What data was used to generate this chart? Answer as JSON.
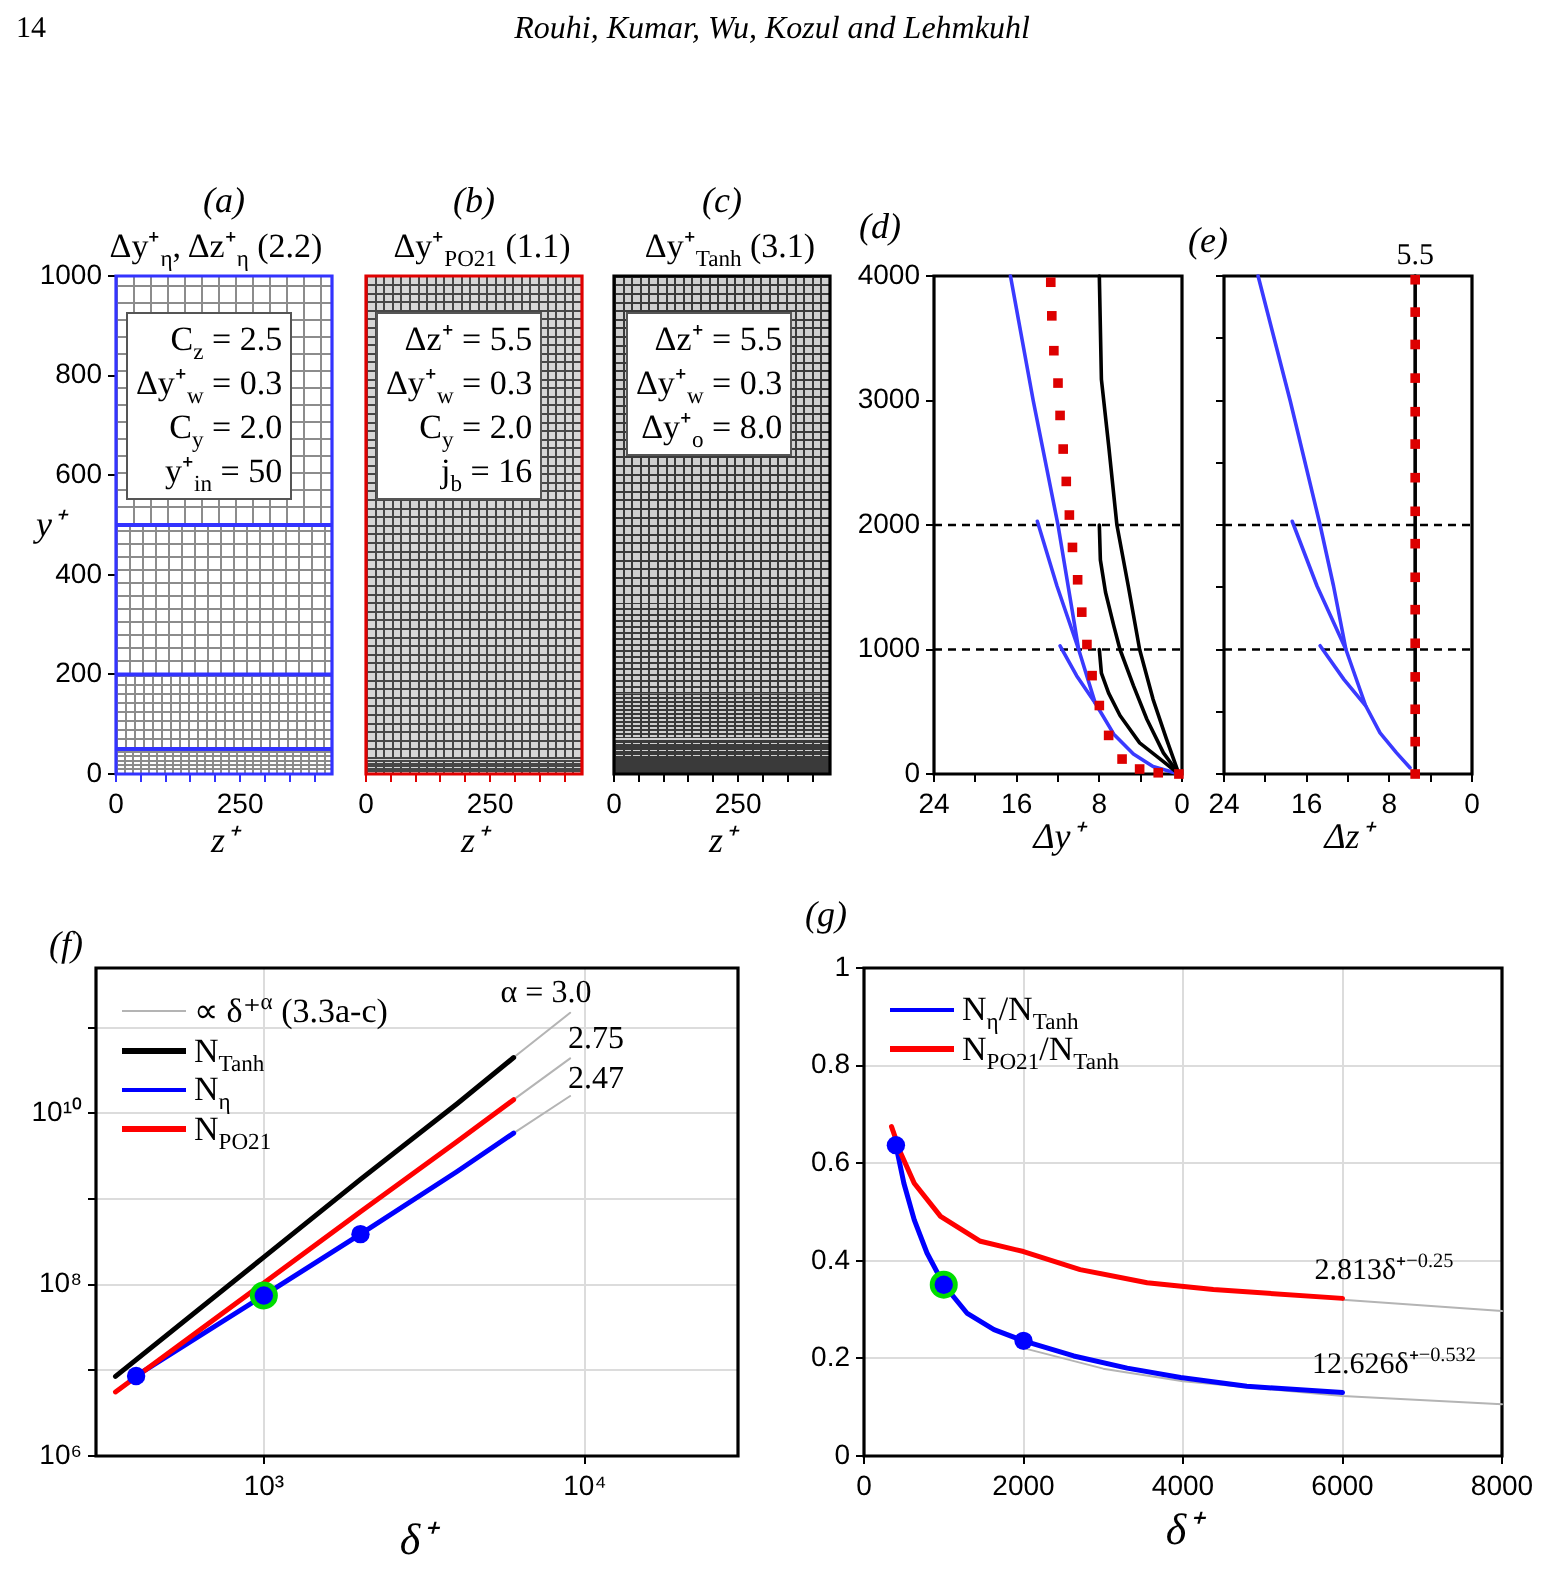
{
  "chart_data": [
    {
      "type": "other",
      "annotations": [
        "14",
        "Rouhi, Kumar, Wu, Kozul and Lehmkuhl"
      ]
    },
    {
      "type": "line",
      "title": "(a)",
      "subtitle": "Δy⁺$_{η}$, Δz⁺$_{η}$ (2.2)",
      "xlabel": "z⁺",
      "ylabel": "y⁺",
      "color": "#3333ff",
      "xlim": [
        0,
        435
      ],
      "ylim": [
        0,
        1000
      ],
      "xticks": [
        0,
        {
          "value": 50,
          "label": null
        },
        {
          "value": 100,
          "label": null
        },
        {
          "value": 150,
          "label": null
        },
        {
          "value": 200,
          "label": null
        },
        250,
        {
          "value": 300,
          "label": null
        },
        {
          "value": 350,
          "label": null
        },
        {
          "value": 400,
          "label": null
        }
      ],
      "yticks": [
        0,
        200,
        400,
        600,
        800,
        1000
      ],
      "ref_lines": [
        {
          "axis": "y",
          "value": 50,
          "color": "#3333ff"
        },
        {
          "axis": "y",
          "value": 200,
          "color": "#3333ff"
        },
        {
          "axis": "y",
          "value": 500,
          "color": "#3333ff"
        }
      ],
      "annotations": [
        "C$_{z}$ = 2.5",
        "Δy⁺$_{w}$ = 0.3",
        "C$_{y}$ = 2.0",
        "y⁺$_{in}$ = 50"
      ]
    },
    {
      "type": "line",
      "title": "(b)",
      "subtitle": "Δy⁺$_{PO21}$ (1.1)",
      "xlabel": "z⁺",
      "color": "#e00000",
      "xlim": [
        0,
        435
      ],
      "ylim": [
        0,
        1000
      ],
      "xticks": [
        0,
        {
          "value": 50,
          "label": null
        },
        {
          "value": 100,
          "label": null
        },
        {
          "value": 150,
          "label": null
        },
        {
          "value": 200,
          "label": null
        },
        250,
        {
          "value": 300,
          "label": null
        },
        {
          "value": 350,
          "label": null
        },
        {
          "value": 400,
          "label": null
        }
      ],
      "tick_labels": "x",
      "annotations": [
        "Δz⁺ = 5.5",
        "Δy⁺$_{w}$ = 0.3",
        "C$_{y}$ = 2.0",
        "j$_{b}$ = 16"
      ]
    },
    {
      "type": "line",
      "title": "(c)",
      "subtitle": "Δy⁺$_{Tanh}$ (3.1)",
      "xlabel": "z⁺",
      "color": "#000000",
      "xlim": [
        0,
        435
      ],
      "ylim": [
        0,
        1000
      ],
      "xticks": [
        0,
        {
          "value": 50,
          "label": null
        },
        {
          "value": 100,
          "label": null
        },
        {
          "value": 150,
          "label": null
        },
        {
          "value": 200,
          "label": null
        },
        250,
        {
          "value": 300,
          "label": null
        },
        {
          "value": 350,
          "label": null
        },
        {
          "value": 400,
          "label": null
        }
      ],
      "tick_labels": "x",
      "annotations": [
        "Δz⁺ = 5.5",
        "Δy⁺$_{w}$ = 0.3",
        "Δy⁺$_{o}$ = 8.0"
      ]
    },
    {
      "type": "line",
      "title": "(d)",
      "xlabel": "Δy⁺",
      "xlim": [
        24,
        0
      ],
      "ylim": [
        0,
        4000
      ],
      "xticks": [
        24,
        {
          "value": 20,
          "label": null
        },
        16,
        {
          "value": 12,
          "label": null
        },
        8,
        {
          "value": 4,
          "label": null
        },
        0
      ],
      "yticks": [
        0,
        1000,
        2000,
        3000,
        4000
      ],
      "ref_lines": [
        {
          "axis": "y",
          "value": 1000,
          "color": "#000000",
          "line_style": "dashed"
        },
        {
          "axis": "y",
          "value": 2000,
          "color": "#000000",
          "line_style": "dashed"
        }
      ],
      "series": [
        {
          "color": "#3a3aff",
          "x": [
            16.6,
            14.4,
            12.0,
            10.0,
            8.4,
            6.6,
            4.7,
            2.8,
            0.3
          ],
          "values": [
            4000,
            3000,
            2000,
            1000,
            570,
            320,
            160,
            60,
            0
          ]
        },
        {
          "color": "#3a3aff",
          "x": [
            14.0,
            12.1,
            10.0
          ],
          "values": [
            2030,
            1510,
            1000
          ]
        },
        {
          "color": "#3a3aff",
          "x": [
            11.8,
            10.2,
            8.4
          ],
          "values": [
            1030,
            790,
            570
          ]
        },
        {
          "color": "#000000",
          "x": [
            8.0,
            7.8,
            7.1,
            6.3,
            5.2,
            4.1,
            2.8,
            1.5,
            0.3
          ],
          "values": [
            4000,
            3170,
            2640,
            2000,
            1510,
            1000,
            600,
            280,
            0
          ]
        },
        {
          "color": "#000000",
          "x": [
            8.0,
            7.9,
            7.4,
            6.6,
            6.0,
            4.7,
            3.4,
            1.8,
            0.3
          ],
          "values": [
            2000,
            1720,
            1460,
            1190,
            1000,
            710,
            440,
            170,
            0
          ]
        },
        {
          "color": "#000000",
          "x": [
            8.0,
            7.8,
            7.1,
            6.0,
            4.1,
            2.1,
            0.3
          ],
          "values": [
            1000,
            810,
            650,
            470,
            250,
            120,
            0
          ]
        },
        {
          "type": "scatter",
          "marker": "square",
          "color": "#dd0000",
          "x": [
            12.7,
            12.6,
            12.4,
            12.0,
            11.8,
            11.5,
            11.2,
            10.9,
            10.6,
            10.1,
            9.7,
            9.2,
            8.7,
            8.0,
            7.1,
            5.8,
            4.1,
            2.3,
            0.3
          ],
          "values": [
            3950,
            3680,
            3400,
            3140,
            2880,
            2610,
            2350,
            2080,
            1820,
            1560,
            1300,
            1040,
            790,
            550,
            310,
            120,
            40,
            10,
            0
          ]
        }
      ]
    },
    {
      "type": "line",
      "title": "(e)",
      "xlabel": "Δz⁺",
      "xlim": [
        24,
        0
      ],
      "ylim": [
        0,
        4000
      ],
      "xticks": [
        24,
        {
          "value": 20,
          "label": null
        },
        16,
        {
          "value": 12,
          "label": null
        },
        8,
        {
          "value": 4,
          "label": null
        },
        0
      ],
      "yticks": [
        0,
        500,
        1000,
        1500,
        2000,
        2500,
        3000,
        3500,
        4000
      ],
      "tick_labels": "x",
      "ref_lines": [
        {
          "axis": "y",
          "value": 1000,
          "color": "#000000",
          "line_style": "dashed"
        },
        {
          "axis": "y",
          "value": 2000,
          "color": "#000000",
          "line_style": "dashed"
        }
      ],
      "annotations": [
        {
          "text": "5.5",
          "x": 5.5,
          "y": 4000
        }
      ],
      "series": [
        {
          "color": "#3a3aff",
          "x": [
            20.7,
            17.6,
            14.7,
            13.4,
            12.2,
            10.3,
            8.9,
            7.3,
            6.0
          ],
          "values": [
            4000,
            3000,
            2000,
            1510,
            1000,
            550,
            330,
            170,
            50
          ]
        },
        {
          "color": "#3a3aff",
          "x": [
            17.4,
            15.0,
            12.2
          ],
          "values": [
            2030,
            1510,
            1000
          ]
        },
        {
          "color": "#3a3aff",
          "x": [
            14.7,
            12.4,
            10.3
          ],
          "values": [
            1030,
            760,
            550
          ]
        },
        {
          "color": "#000000",
          "x": [
            5.5,
            5.5
          ],
          "values": [
            0,
            4000
          ]
        },
        {
          "type": "scatter",
          "marker": "square",
          "color": "#dd0000",
          "x": [
            5.5,
            5.5,
            5.5,
            5.5,
            5.5,
            5.5,
            5.5,
            5.5,
            5.5,
            5.5,
            5.5,
            5.5,
            5.5,
            5.5,
            5.5,
            5.5
          ],
          "values": [
            0,
            260,
            520,
            780,
            1050,
            1320,
            1580,
            1850,
            2110,
            2380,
            2650,
            2910,
            3180,
            3450,
            3710,
            3970
          ]
        }
      ]
    },
    {
      "type": "line",
      "title": "(f)",
      "xlabel": "δ⁺",
      "log": "xy",
      "xlim": [
        300,
        30000
      ],
      "ylim": [
        1000000,
        500000000000
      ],
      "xticks": [
        {
          "value": 1000,
          "label": "10³"
        },
        {
          "value": 10000,
          "label": "10⁴"
        }
      ],
      "yticks": [
        {
          "value": 1000000,
          "label": "10⁶"
        },
        {
          "value": 10000000,
          "label": null
        },
        {
          "value": 100000000,
          "label": "10⁸"
        },
        {
          "value": 1000000000,
          "label": null
        },
        {
          "value": 10000000000,
          "label": "10¹⁰"
        },
        {
          "value": 100000000000,
          "label": null
        }
      ],
      "grid": true,
      "legend": "top left",
      "annotations": [
        "α = 3.0",
        "2.75",
        "2.47"
      ],
      "series": [
        {
          "name": "∝ δ⁺$^{α}$ (3.3a-c)",
          "color": "#b4b4b4",
          "x": [
            6000,
            9000
          ],
          "values": [
            45000000000,
            150000000000
          ]
        },
        {
          "color": "#b4b4b4",
          "x": [
            6000,
            9000
          ],
          "values": [
            14500000000,
            44000000000
          ]
        },
        {
          "color": "#b4b4b4",
          "x": [
            6000,
            9000
          ],
          "values": [
            5900000000,
            16000000000
          ]
        },
        {
          "name": "N$_{Tanh}$",
          "color": "#000000",
          "x": [
            345,
            1000,
            2000,
            4000,
            6000
          ],
          "values": [
            8500000,
            210000000,
            1700000000,
            13000000000,
            45000000000
          ]
        },
        {
          "name": "N$_{η}$",
          "color": "#0000ff",
          "x": [
            400,
            1000,
            2000,
            4000,
            6000
          ],
          "values": [
            8600000,
            75000000,
            390000000,
            2100000000,
            5900000000
          ]
        },
        {
          "name": "N$_{PO21}$",
          "color": "#ff0000",
          "x": [
            345,
            1000,
            2000,
            4000,
            6000
          ],
          "values": [
            5600000,
            105000000,
            710000000,
            4700000000,
            14500000000
          ]
        },
        {
          "type": "scatter",
          "marker": "circle",
          "color": "#00dd00",
          "x": [
            1000
          ],
          "values": [
            75000000
          ]
        },
        {
          "type": "scatter",
          "marker": "circle",
          "color": "#0000ff",
          "x": [
            400,
            1000,
            2000
          ],
          "values": [
            8600000,
            75000000,
            390000000
          ]
        }
      ]
    },
    {
      "type": "line",
      "title": "(g)",
      "xlabel": "δ⁺",
      "xlim": [
        0,
        8000
      ],
      "ylim": [
        0,
        1
      ],
      "xticks": [
        0,
        2000,
        4000,
        6000,
        8000
      ],
      "yticks": [
        0,
        0.2,
        0.4,
        0.6,
        0.8,
        1
      ],
      "grid": true,
      "legend": "top left",
      "annotations": [
        "2.813δ⁺$^{−0.25}$",
        "12.626δ⁺$^{−0.532}$"
      ],
      "series": [
        {
          "color": "#b4b4b4",
          "x": [
            2000,
            3000,
            4000,
            6000,
            8000
          ],
          "values": [
            0.221,
            0.179,
            0.153,
            0.123,
            0.106
          ]
        },
        {
          "color": "#b4b4b4",
          "x": [
            6000,
            8000
          ],
          "values": [
            0.32,
            0.297
          ]
        },
        {
          "name": "N$_{η}$/N$_{Tanh}$",
          "color": "#0000ff",
          "x": [
            400,
            500,
            630,
            790,
            1000,
            1290,
            1630,
            2000,
            2630,
            3300,
            3970,
            4800,
            6000
          ],
          "values": [
            0.637,
            0.559,
            0.484,
            0.416,
            0.351,
            0.293,
            0.259,
            0.236,
            0.205,
            0.18,
            0.161,
            0.143,
            0.13
          ]
        },
        {
          "name": "N$_{PO21}$/N$_{Tanh}$",
          "color": "#ff0000",
          "x": [
            345,
            460,
            630,
            960,
            1460,
            2000,
            2710,
            3550,
            4380,
            6000
          ],
          "values": [
            0.675,
            0.621,
            0.559,
            0.491,
            0.44,
            0.419,
            0.382,
            0.355,
            0.341,
            0.323
          ]
        },
        {
          "type": "scatter",
          "marker": "circle",
          "color": "#00dd00",
          "x": [
            1000
          ],
          "values": [
            0.351
          ]
        },
        {
          "type": "scatter",
          "marker": "circle",
          "color": "#0000ff",
          "x": [
            400,
            1000,
            2000
          ],
          "values": [
            0.637,
            0.351,
            0.236
          ]
        }
      ]
    }
  ]
}
